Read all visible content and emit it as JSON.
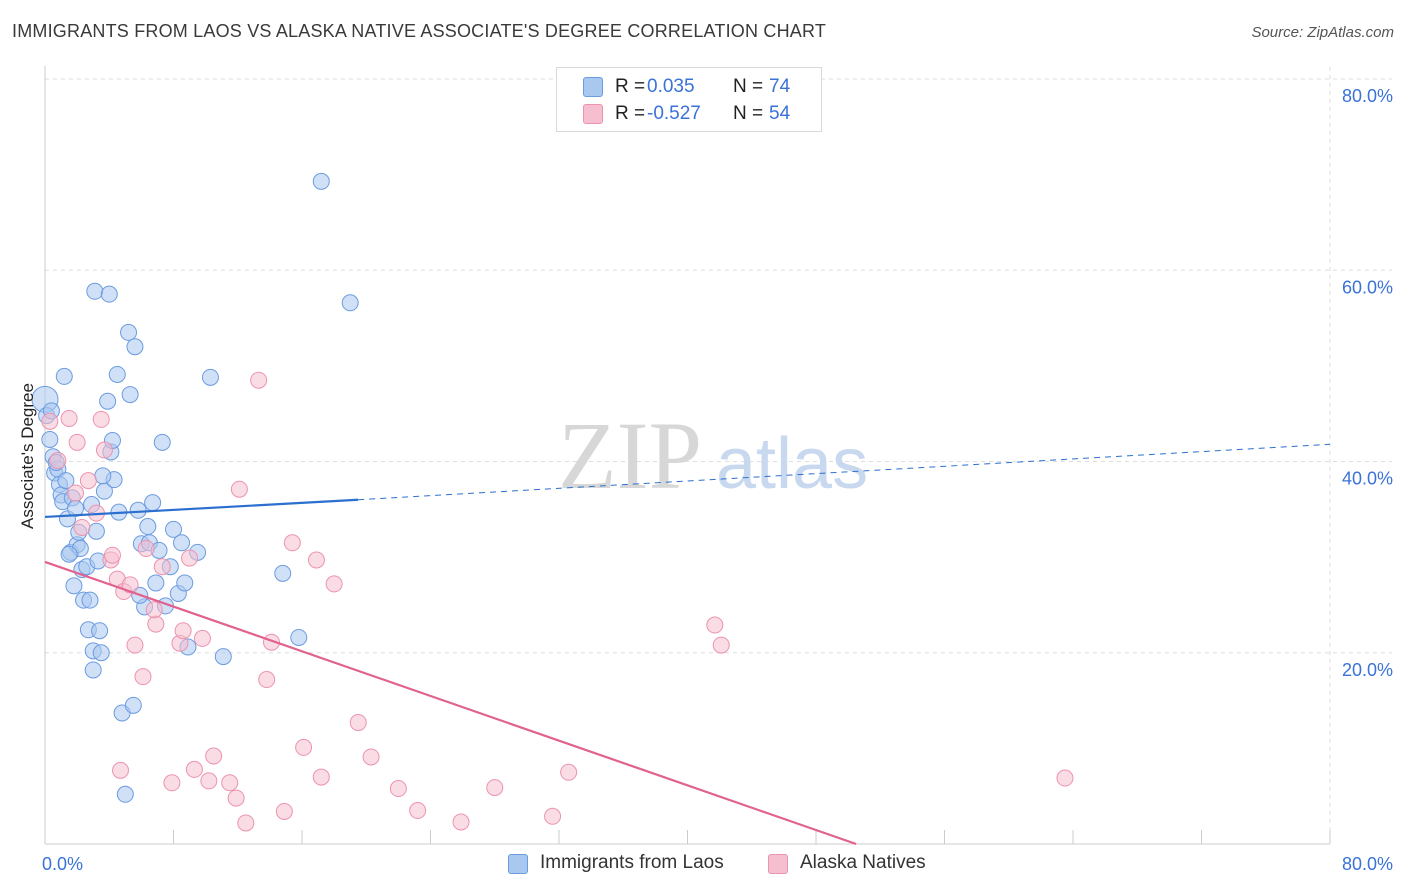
{
  "header": {
    "title": "IMMIGRANTS FROM LAOS VS ALASKA NATIVE ASSOCIATE'S DEGREE CORRELATION CHART",
    "source": "Source: ZipAtlas.com"
  },
  "watermark": {
    "zip": "ZIP",
    "atlas": "atlas"
  },
  "legend": {
    "rows": [
      {
        "r_label": "R =",
        "r_value": "0.035",
        "n_label": "N =",
        "n_value": "74"
      },
      {
        "r_label": "R =",
        "r_value": "-0.527",
        "n_label": "N =",
        "n_value": "54"
      }
    ]
  },
  "bottom_legend": {
    "series1": "Immigrants from Laos",
    "series2": "Alaska Natives"
  },
  "colors": {
    "blue_fill": "#a9c8f0",
    "blue_stroke": "#6b9be0",
    "blue_line": "#2b6fcf",
    "pink_fill": "#f6bfd0",
    "pink_stroke": "#ec93b0",
    "pink_line": "#e0628d",
    "grid": "#dddddd",
    "axis_label": "#3a72d8"
  },
  "chart_data": {
    "type": "scatter",
    "title": "IMMIGRANTS FROM LAOS VS ALASKA NATIVE ASSOCIATE'S DEGREE CORRELATION CHART",
    "xlabel": "",
    "ylabel": "Associate's Degree",
    "xlim": [
      0,
      80
    ],
    "ylim": [
      0,
      80
    ],
    "x_ticks": [
      "0.0%",
      "80.0%"
    ],
    "y_ticks": [
      "20.0%",
      "40.0%",
      "60.0%",
      "80.0%"
    ],
    "series": [
      {
        "name": "Immigrants from Laos",
        "r": 0.035,
        "n": 74,
        "trend": {
          "solid": [
            [
              0,
              34.2
            ],
            [
              19.5,
              36.0
            ]
          ],
          "dashed": [
            [
              19.5,
              36.0
            ],
            [
              80,
              41.8
            ]
          ]
        },
        "points": [
          [
            0,
            46.5
          ],
          [
            0.1,
            44.8
          ],
          [
            0.3,
            42.3
          ],
          [
            0.5,
            40.5
          ],
          [
            0.6,
            38.8
          ],
          [
            0.8,
            39.2
          ],
          [
            0.9,
            37.6
          ],
          [
            1.0,
            36.5
          ],
          [
            1.1,
            35.8
          ],
          [
            1.3,
            38.0
          ],
          [
            1.4,
            34.0
          ],
          [
            1.6,
            30.5
          ],
          [
            1.7,
            36.2
          ],
          [
            1.8,
            27.0
          ],
          [
            1.9,
            35.1
          ],
          [
            2.0,
            31.3
          ],
          [
            2.1,
            32.6
          ],
          [
            2.2,
            30.9
          ],
          [
            2.3,
            28.7
          ],
          [
            2.4,
            25.5
          ],
          [
            2.6,
            29.0
          ],
          [
            2.7,
            22.4
          ],
          [
            2.8,
            25.5
          ],
          [
            3.0,
            20.2
          ],
          [
            3.0,
            18.2
          ],
          [
            3.1,
            57.8
          ],
          [
            3.2,
            32.7
          ],
          [
            3.3,
            29.6
          ],
          [
            3.4,
            22.3
          ],
          [
            3.5,
            20.0
          ],
          [
            3.7,
            36.9
          ],
          [
            3.9,
            46.3
          ],
          [
            4.0,
            57.5
          ],
          [
            4.1,
            41.0
          ],
          [
            4.2,
            42.2
          ],
          [
            4.3,
            38.1
          ],
          [
            4.5,
            49.1
          ],
          [
            4.6,
            34.7
          ],
          [
            4.8,
            13.7
          ],
          [
            5.0,
            5.2
          ],
          [
            5.2,
            53.5
          ],
          [
            5.3,
            47.0
          ],
          [
            5.5,
            14.5
          ],
          [
            5.6,
            52.0
          ],
          [
            5.8,
            34.9
          ],
          [
            6.0,
            31.4
          ],
          [
            6.2,
            24.8
          ],
          [
            6.5,
            31.5
          ],
          [
            6.7,
            35.7
          ],
          [
            6.9,
            27.3
          ],
          [
            7.1,
            30.7
          ],
          [
            7.3,
            42.0
          ],
          [
            7.5,
            24.9
          ],
          [
            7.8,
            29.0
          ],
          [
            8.0,
            32.9
          ],
          [
            8.3,
            26.2
          ],
          [
            8.5,
            31.5
          ],
          [
            8.7,
            27.3
          ],
          [
            8.9,
            20.6
          ],
          [
            9.5,
            30.5
          ],
          [
            10.3,
            48.8
          ],
          [
            11.1,
            19.6
          ],
          [
            14.8,
            28.3
          ],
          [
            15.8,
            21.6
          ],
          [
            17.2,
            69.3
          ],
          [
            19.0,
            56.6
          ],
          [
            0.4,
            45.3
          ],
          [
            1.2,
            48.9
          ],
          [
            0.7,
            39.9
          ],
          [
            1.5,
            30.3
          ],
          [
            2.9,
            35.5
          ],
          [
            3.6,
            38.5
          ],
          [
            5.9,
            26.0
          ],
          [
            6.4,
            33.2
          ]
        ]
      },
      {
        "name": "Alaska Natives",
        "r": -0.527,
        "n": 54,
        "trend": {
          "solid": [
            [
              0,
              29.5
            ],
            [
              50.5,
              0.0
            ]
          ]
        },
        "points": [
          [
            0.3,
            44.2
          ],
          [
            0.8,
            40.1
          ],
          [
            1.5,
            44.5
          ],
          [
            1.9,
            36.7
          ],
          [
            2.3,
            33.1
          ],
          [
            2.7,
            38.0
          ],
          [
            3.2,
            34.6
          ],
          [
            3.5,
            44.4
          ],
          [
            3.7,
            41.2
          ],
          [
            4.1,
            29.7
          ],
          [
            4.5,
            27.7
          ],
          [
            4.7,
            7.7
          ],
          [
            4.9,
            26.4
          ],
          [
            5.3,
            27.1
          ],
          [
            5.6,
            20.8
          ],
          [
            6.1,
            17.5
          ],
          [
            6.3,
            30.9
          ],
          [
            6.9,
            23.0
          ],
          [
            7.3,
            29.0
          ],
          [
            7.9,
            6.4
          ],
          [
            8.4,
            21.0
          ],
          [
            8.6,
            22.3
          ],
          [
            9.0,
            29.9
          ],
          [
            9.3,
            7.8
          ],
          [
            9.8,
            21.5
          ],
          [
            10.2,
            6.6
          ],
          [
            10.5,
            9.2
          ],
          [
            11.5,
            6.4
          ],
          [
            11.9,
            4.8
          ],
          [
            12.1,
            37.1
          ],
          [
            12.5,
            2.2
          ],
          [
            13.3,
            48.5
          ],
          [
            13.8,
            17.2
          ],
          [
            14.1,
            21.1
          ],
          [
            14.9,
            3.4
          ],
          [
            15.4,
            31.5
          ],
          [
            16.1,
            10.1
          ],
          [
            16.9,
            29.7
          ],
          [
            17.2,
            7.0
          ],
          [
            18.0,
            27.2
          ],
          [
            19.5,
            12.7
          ],
          [
            20.3,
            9.1
          ],
          [
            22.0,
            5.8
          ],
          [
            23.2,
            3.5
          ],
          [
            25.9,
            2.3
          ],
          [
            28.0,
            5.9
          ],
          [
            31.6,
            2.9
          ],
          [
            32.6,
            7.5
          ],
          [
            41.7,
            22.9
          ],
          [
            42.1,
            20.8
          ],
          [
            63.5,
            6.9
          ],
          [
            2.0,
            42.0
          ],
          [
            4.2,
            30.2
          ],
          [
            6.8,
            24.5
          ]
        ]
      }
    ]
  }
}
